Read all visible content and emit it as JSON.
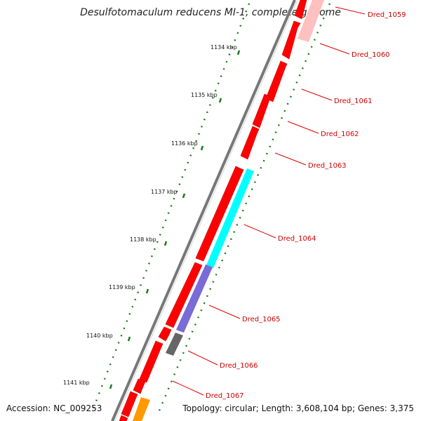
{
  "title": "Desulfotomaculum reducens MI-1, complete genome",
  "accession": "Accession: NC_009253",
  "topology": "Topology: circular; Length: 3,608,104 bp; Genes: 3,375",
  "kbp_labels": [
    "1134 kbp",
    "1135 kbp",
    "1136 kbp",
    "1137 kbp",
    "1138 kbp",
    "1139 kbp",
    "1140 kbp",
    "1141 kbp"
  ],
  "gene_labels": [
    "Dred_1059",
    "Dred_1060",
    "Dred_1061",
    "Dred_1062",
    "Dred_1063",
    "Dred_1064",
    "Dred_1065",
    "Dred_1066",
    "Dred_1067"
  ],
  "colors": {
    "backbone": "#888888",
    "gene_red": "#ff0000",
    "gene_cyan": "#00ffff",
    "gene_purple": "#7a6bd6",
    "gene_gray": "#666666",
    "gene_orange": "#ff9900",
    "gene_pink": "#ffc0c0",
    "tick_green": "#1a7a1a",
    "label_red": "#cc0000"
  }
}
